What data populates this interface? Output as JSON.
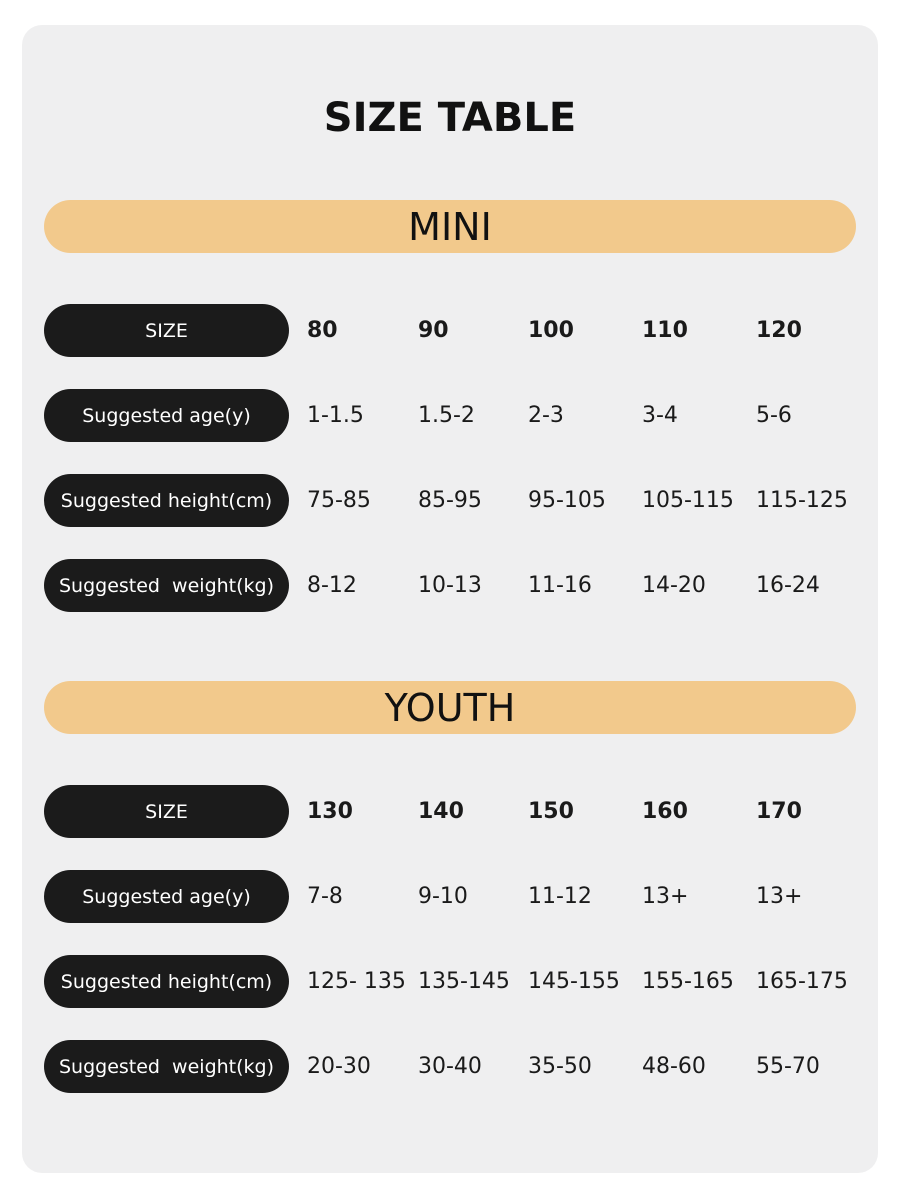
{
  "title": "SIZE TABLE",
  "sections": [
    {
      "heading": "MINI",
      "rows": [
        {
          "label": "SIZE",
          "cells": [
            "80",
            "90",
            "100",
            "110",
            "120"
          ]
        },
        {
          "label": "Suggested age(y)",
          "cells": [
            "1-1.5",
            "1.5-2",
            "2-3",
            "3-4",
            "5-6"
          ]
        },
        {
          "label": "Suggested height(cm)",
          "cells": [
            "75-85",
            "85-95",
            "95-105",
            "105-115",
            "115-125"
          ]
        },
        {
          "label": "Suggested  weight(kg)",
          "cells": [
            "8-12",
            "10-13",
            "11-16",
            "14-20",
            "16-24"
          ]
        }
      ]
    },
    {
      "heading": "YOUTH",
      "rows": [
        {
          "label": "SIZE",
          "cells": [
            "130",
            "140",
            "150",
            "160",
            "170"
          ]
        },
        {
          "label": "Suggested age(y)",
          "cells": [
            "7-8",
            "9-10",
            "11-12",
            "13+",
            "13+"
          ]
        },
        {
          "label": "Suggested height(cm)",
          "cells": [
            "125- 135",
            "135-145",
            "145-155",
            "155-165",
            "165-175"
          ]
        },
        {
          "label": "Suggested  weight(kg)",
          "cells": [
            "20-30",
            "30-40",
            "35-50",
            "48-60",
            "55-70"
          ]
        }
      ]
    }
  ]
}
